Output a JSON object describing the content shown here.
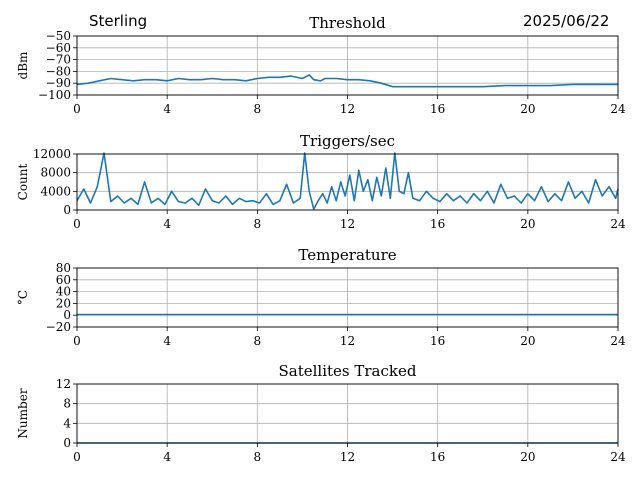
{
  "header": {
    "station": "Sterling",
    "date": "2025/06/22"
  },
  "chart_data": [
    {
      "type": "line",
      "title": "Threshold",
      "ylabel": "dBm",
      "xlim": [
        0,
        24
      ],
      "ylim": [
        -100,
        -50
      ],
      "xticks": [
        0,
        4,
        8,
        12,
        16,
        20,
        24
      ],
      "yticks": [
        -100,
        -90,
        -80,
        -70,
        -60,
        -50
      ],
      "grid": true,
      "color": "#1f77b4",
      "series": [
        {
          "x": [
            0,
            0.5,
            1,
            1.5,
            2,
            2.5,
            3,
            3.5,
            4,
            4.5,
            5,
            5.5,
            6,
            6.5,
            7,
            7.5,
            8,
            8.5,
            9,
            9.5,
            10,
            10.3,
            10.5,
            10.8,
            11,
            11.5,
            12,
            12.5,
            13,
            13.5,
            14,
            15,
            16,
            17,
            18,
            19,
            20,
            21,
            22,
            23,
            24
          ],
          "y": [
            -91,
            -90,
            -88,
            -86,
            -87,
            -88,
            -87,
            -87,
            -88,
            -86,
            -87,
            -87,
            -86,
            -87,
            -87,
            -88,
            -86,
            -85,
            -85,
            -84,
            -86,
            -83,
            -87,
            -88,
            -86,
            -86,
            -87,
            -87,
            -88,
            -90,
            -93,
            -93,
            -93,
            -93,
            -93,
            -92,
            -92,
            -92,
            -91,
            -91,
            -91
          ]
        }
      ]
    },
    {
      "type": "line",
      "title": "Triggers/sec",
      "ylabel": "Count",
      "xlim": [
        0,
        24
      ],
      "ylim": [
        0,
        12000
      ],
      "xticks": [
        0,
        4,
        8,
        12,
        16,
        20,
        24
      ],
      "yticks": [
        0,
        4000,
        8000,
        12000
      ],
      "grid": true,
      "color": "#1f77b4",
      "series": [
        {
          "x": [
            0,
            0.3,
            0.6,
            0.9,
            1.2,
            1.5,
            1.8,
            2.1,
            2.4,
            2.7,
            3,
            3.3,
            3.6,
            3.9,
            4.2,
            4.5,
            4.8,
            5.1,
            5.4,
            5.7,
            6,
            6.3,
            6.6,
            6.9,
            7.2,
            7.5,
            7.8,
            8.1,
            8.4,
            8.7,
            9,
            9.3,
            9.6,
            9.9,
            10.1,
            10.3,
            10.5,
            10.7,
            10.9,
            11.1,
            11.3,
            11.5,
            11.7,
            11.9,
            12.1,
            12.3,
            12.5,
            12.7,
            12.9,
            13.1,
            13.3,
            13.5,
            13.7,
            13.9,
            14.1,
            14.3,
            14.5,
            14.7,
            14.9,
            15.2,
            15.5,
            15.8,
            16.1,
            16.4,
            16.7,
            17,
            17.3,
            17.6,
            17.9,
            18.2,
            18.5,
            18.8,
            19.1,
            19.4,
            19.7,
            20,
            20.3,
            20.6,
            20.9,
            21.2,
            21.5,
            21.8,
            22.1,
            22.4,
            22.7,
            23,
            23.3,
            23.6,
            23.9,
            24
          ],
          "y": [
            2000,
            4500,
            1500,
            5000,
            12500,
            1800,
            3000,
            1500,
            2500,
            1200,
            6000,
            1500,
            2500,
            1200,
            4000,
            1800,
            1500,
            2500,
            1000,
            4500,
            2000,
            1500,
            3000,
            1200,
            2500,
            1800,
            2000,
            1500,
            3500,
            1200,
            2000,
            5500,
            1500,
            2500,
            12500,
            4000,
            200,
            2000,
            3500,
            1500,
            5000,
            2000,
            6000,
            3000,
            7500,
            2000,
            8500,
            4000,
            6500,
            2000,
            7000,
            3000,
            9000,
            2500,
            12500,
            4000,
            3500,
            8000,
            2500,
            2000,
            4000,
            2500,
            1800,
            3500,
            2000,
            3000,
            1500,
            3500,
            2000,
            4000,
            1500,
            5500,
            2500,
            3000,
            1500,
            3500,
            2000,
            5000,
            1800,
            3500,
            2000,
            6000,
            2500,
            4000,
            1500,
            6500,
            3000,
            5000,
            2500,
            4500
          ]
        }
      ]
    },
    {
      "type": "line",
      "title": "Temperature",
      "ylabel": "°C",
      "xlim": [
        0,
        24
      ],
      "ylim": [
        -20,
        80
      ],
      "xticks": [
        0,
        4,
        8,
        12,
        16,
        20,
        24
      ],
      "yticks": [
        -20,
        0,
        20,
        40,
        60,
        80
      ],
      "grid": true,
      "color": "#1f77b4",
      "series": [
        {
          "x": [
            0,
            24
          ],
          "y": [
            1,
            1
          ]
        }
      ]
    },
    {
      "type": "line",
      "title": "Satellites Tracked",
      "ylabel": "Number",
      "xlim": [
        0,
        24
      ],
      "ylim": [
        0,
        12
      ],
      "xticks": [
        0,
        4,
        8,
        12,
        16,
        20,
        24
      ],
      "yticks": [
        0,
        4,
        8,
        12
      ],
      "grid": true,
      "color": "#1f77b4",
      "series": [
        {
          "x": [
            0,
            24
          ],
          "y": [
            0,
            0
          ]
        }
      ]
    }
  ]
}
